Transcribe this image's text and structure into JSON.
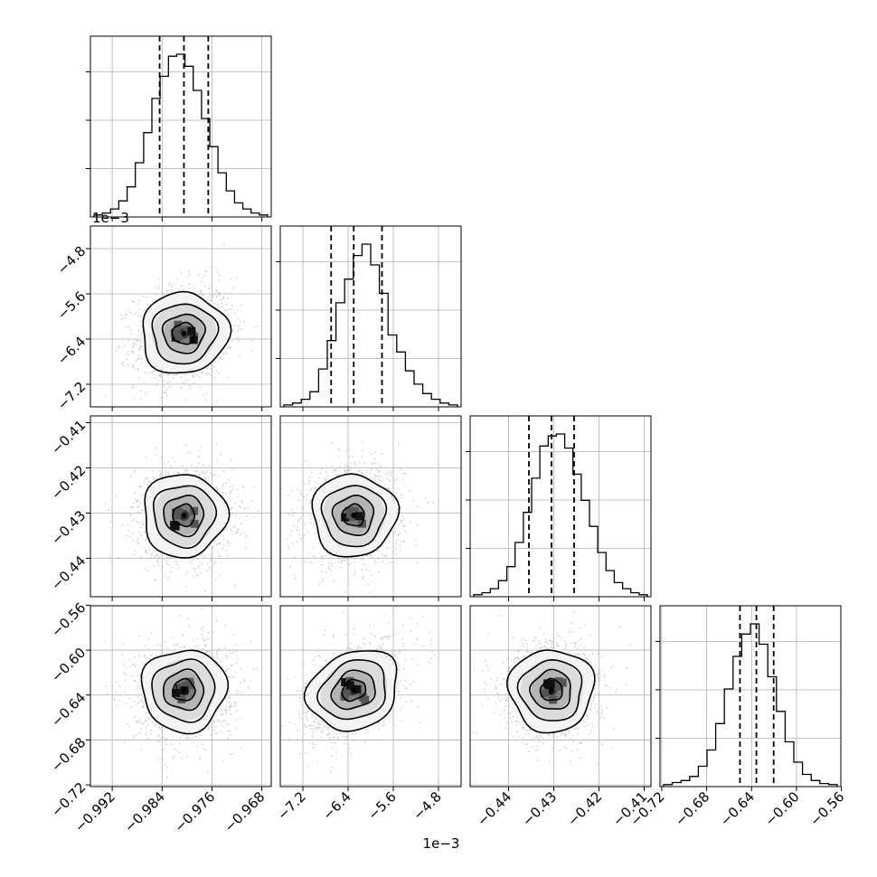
{
  "chart_data": {
    "type": "corner",
    "grid": true,
    "params": [
      {
        "range": [
          -0.9955,
          -0.9665
        ],
        "ticks": [
          "−0.992",
          "−0.984",
          "−0.976",
          "−0.968"
        ],
        "tick_values": [
          -0.992,
          -0.984,
          -0.976,
          -0.968
        ],
        "offset_label": "1e−3",
        "quantiles": [
          -0.9844,
          -0.9805,
          -0.9766
        ],
        "center": -0.9805,
        "hist": [
          2,
          4,
          8,
          16,
          30,
          54,
          84,
          118,
          140,
          160,
          162,
          150,
          126,
          98,
          70,
          44,
          26,
          14,
          8,
          4,
          2
        ]
      },
      {
        "range": [
          -7.6,
          -4.4
        ],
        "ticks": [
          "−7.2",
          "−6.4",
          "−5.6",
          "−4.8"
        ],
        "tick_values": [
          -7.2,
          -6.4,
          -5.6,
          -4.8
        ],
        "offset_label": "1e−3",
        "quantiles": [
          -6.7,
          -6.3,
          -5.8
        ],
        "center": -6.3,
        "hist": [
          2,
          4,
          8,
          16,
          40,
          70,
          110,
          135,
          160,
          172,
          150,
          120,
          76,
          58,
          38,
          24,
          14,
          8,
          4,
          2
        ]
      },
      {
        "range": [
          -0.4485,
          -0.4085
        ],
        "ticks": [
          "−0.44",
          "−0.43",
          "−0.42",
          "−0.41"
        ],
        "tick_values": [
          -0.44,
          -0.43,
          -0.42,
          -0.41
        ],
        "offset_label": "",
        "quantiles": [
          -0.4355,
          -0.4305,
          -0.4255
        ],
        "center": -0.4305,
        "hist": [
          2,
          4,
          8,
          16,
          30,
          54,
          84,
          118,
          150,
          160,
          162,
          148,
          122,
          96,
          70,
          44,
          26,
          14,
          8,
          4,
          2
        ]
      },
      {
        "range": [
          -0.7215,
          -0.5605
        ],
        "ticks": [
          "−0.72",
          "−0.68",
          "−0.64",
          "−0.60",
          "−0.56"
        ],
        "tick_values": [
          -0.72,
          -0.68,
          -0.64,
          -0.6,
          -0.56
        ],
        "offset_label": "",
        "quantiles": [
          -0.6503,
          -0.6357,
          -0.6203
        ],
        "center": -0.6357,
        "hist": [
          2,
          4,
          6,
          10,
          20,
          36,
          62,
          96,
          128,
          150,
          160,
          140,
          108,
          74,
          44,
          24,
          12,
          6,
          3,
          2
        ]
      }
    ],
    "correlations": {
      "1-0": 0.15,
      "2-0": 0.0,
      "2-1": 0.05,
      "3-0": 0.05,
      "3-1": 0.45,
      "3-2": 0.05
    },
    "colors": {
      "line": "#000000",
      "grid": "#b0b0b0",
      "points": "#c2c2c2"
    }
  }
}
